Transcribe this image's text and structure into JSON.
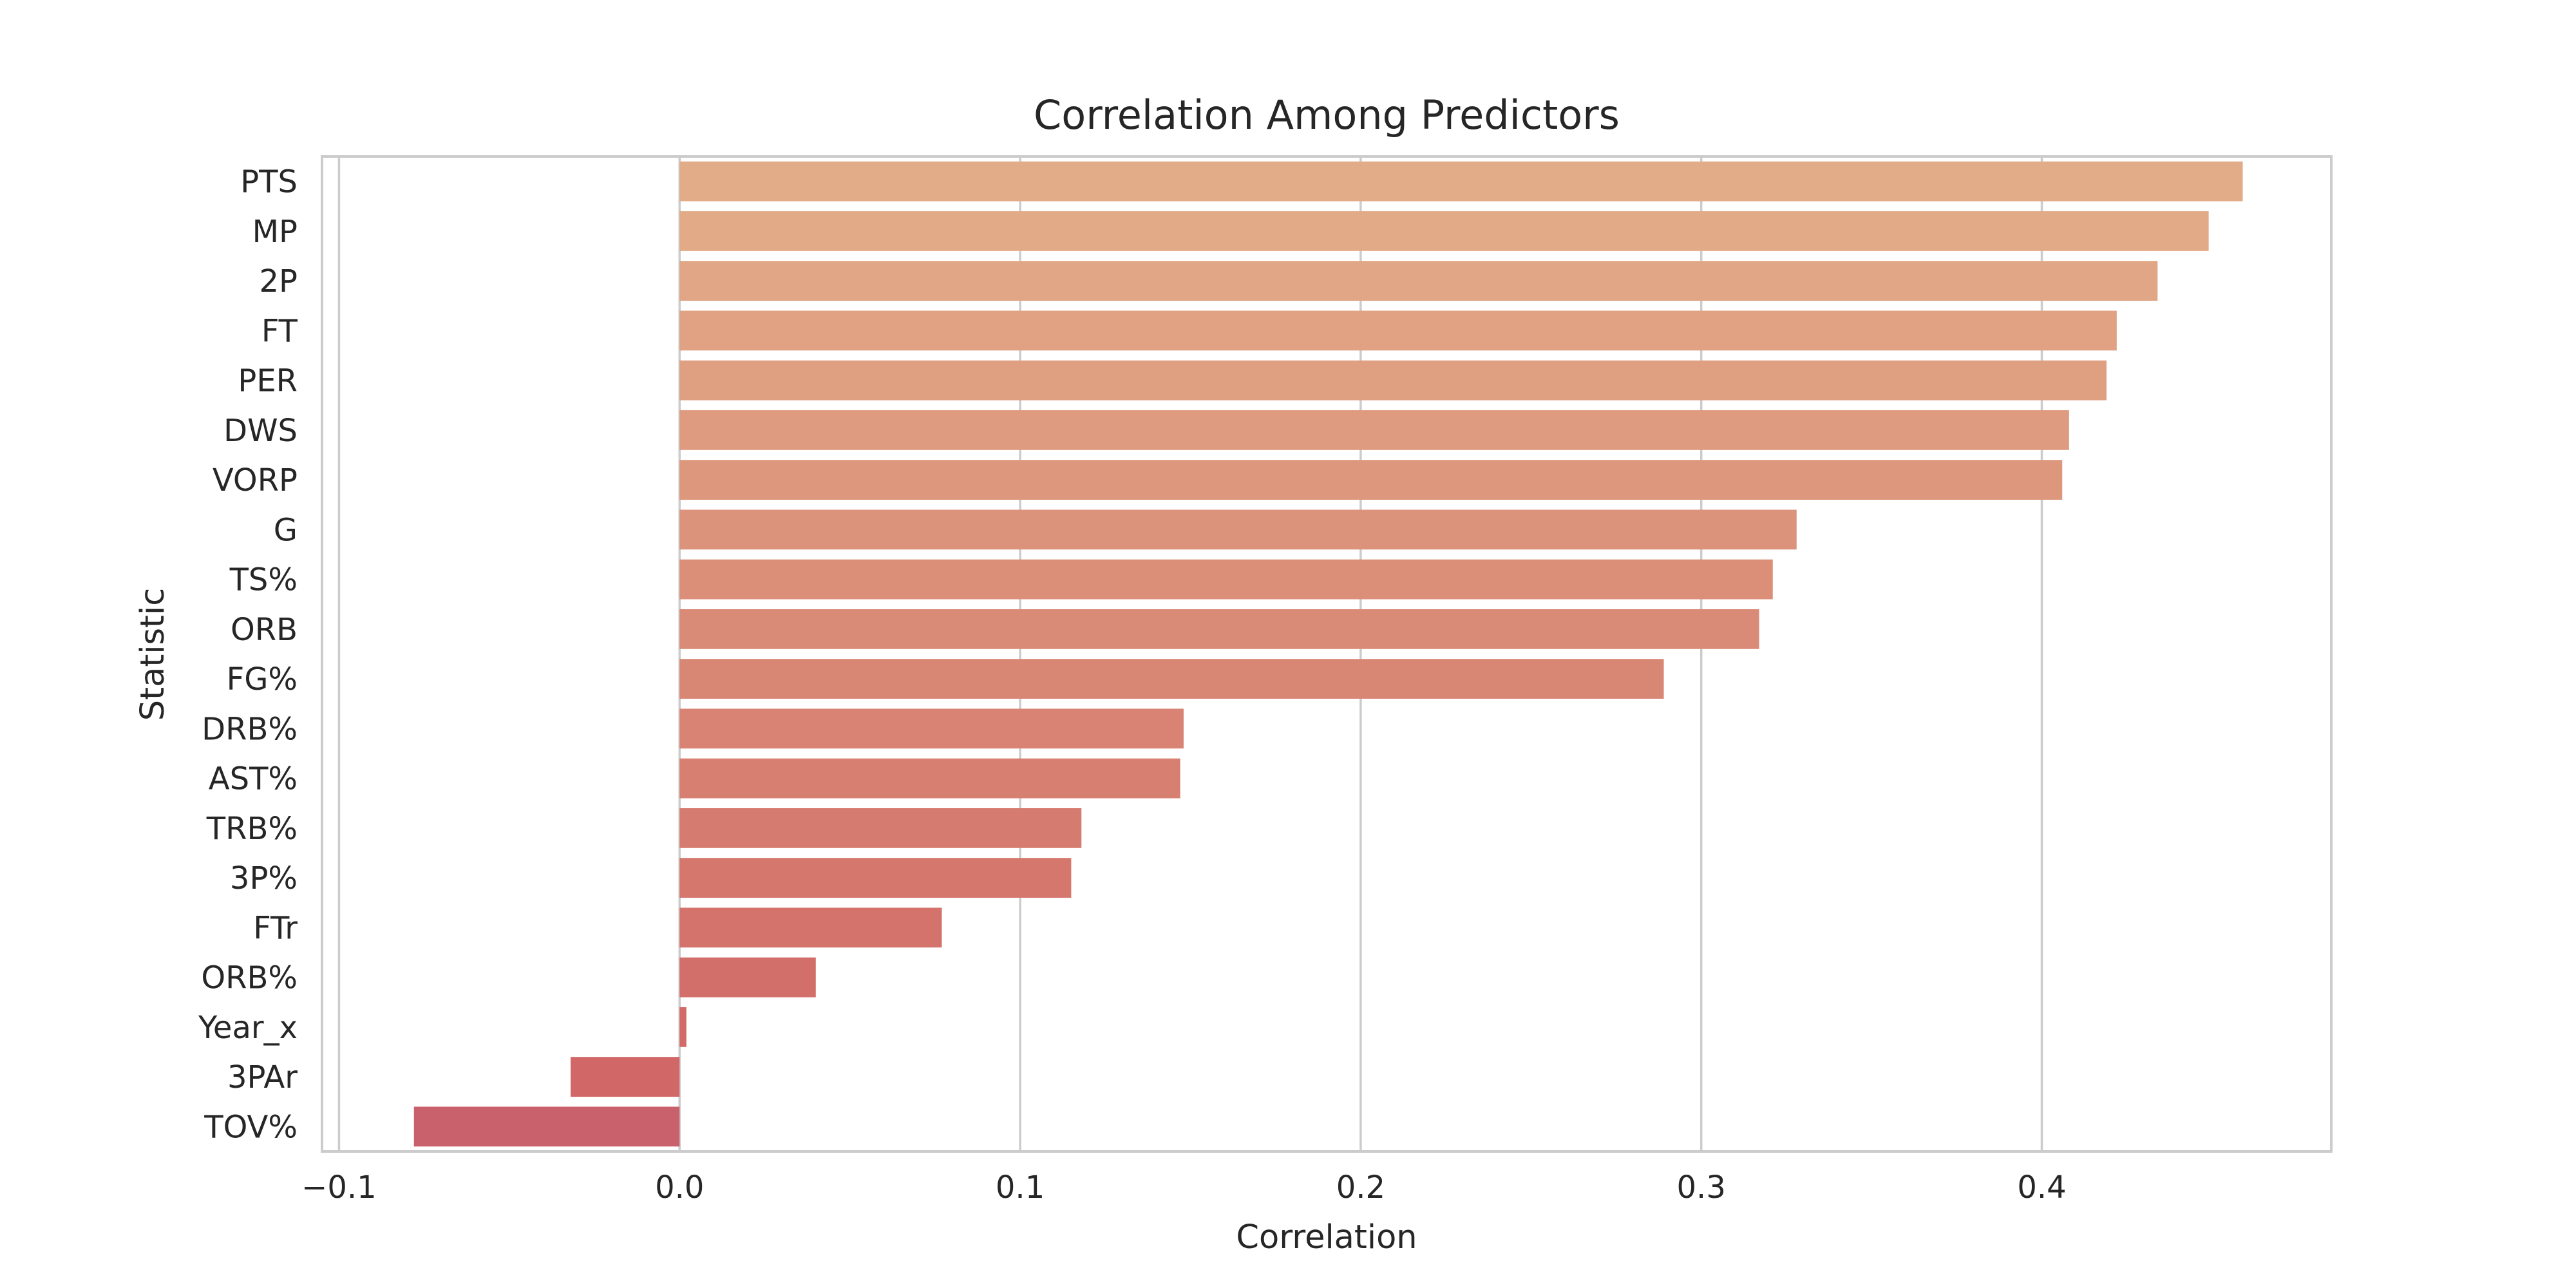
{
  "chart_data": {
    "type": "bar",
    "orientation": "horizontal",
    "title": "Correlation Among Predictors",
    "xlabel": "Correlation",
    "ylabel": "Statistic",
    "xlim": [
      -0.105,
      0.485
    ],
    "x_ticks": [
      -0.1,
      0.0,
      0.1,
      0.2,
      0.3,
      0.4
    ],
    "x_tick_labels": [
      "−0.1",
      "0.0",
      "0.1",
      "0.2",
      "0.3",
      "0.4"
    ],
    "grid": "vertical",
    "categories": [
      "PTS",
      "MP",
      "2P",
      "FT",
      "PER",
      "DWS",
      "VORP",
      "G",
      "TS%",
      "ORB",
      "FG%",
      "DRB%",
      "AST%",
      "TRB%",
      "3P%",
      "FTr",
      "ORB%",
      "Year_x",
      "3PAr",
      "TOV%"
    ],
    "values": [
      0.459,
      0.449,
      0.434,
      0.422,
      0.419,
      0.408,
      0.406,
      0.328,
      0.321,
      0.317,
      0.289,
      0.148,
      0.147,
      0.118,
      0.115,
      0.077,
      0.04,
      0.002,
      -0.032,
      -0.078
    ],
    "colors": [
      "#e2ac89",
      "#e2aa87",
      "#e1a685",
      "#e0a283",
      "#df9f81",
      "#de9b7f",
      "#dd977d",
      "#dc937b",
      "#db8f79",
      "#da8b77",
      "#d98775",
      "#d88373",
      "#d77f71",
      "#d67b6f",
      "#d5776d",
      "#d4736c",
      "#d36f6a",
      "#d26b68",
      "#d16766",
      "#c8616c"
    ]
  }
}
